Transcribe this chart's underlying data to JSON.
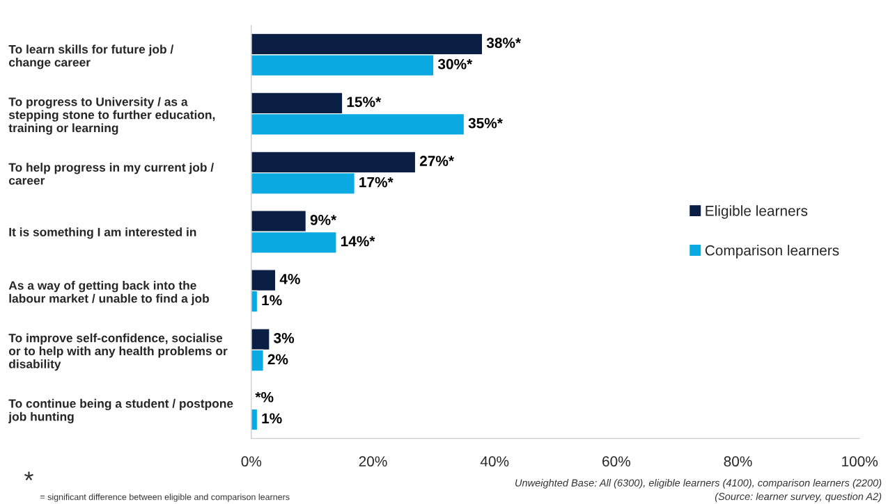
{
  "chart_data": {
    "type": "bar",
    "orientation": "horizontal",
    "categories": [
      "To learn skills for future job / change career",
      "To progress to University / as a stepping stone to further education, training or learning",
      "To help progress in my current job / career",
      "It is something I am interested in",
      "As a way of getting back into the labour market / unable to find a job",
      "To improve self-confidence, socialise or to help with any health problems or disability",
      "To continue being a student / postpone job hunting"
    ],
    "series": [
      {
        "name": "Eligible learners",
        "color": "#0b1f45",
        "values": [
          38,
          15,
          27,
          9,
          4,
          3,
          null
        ],
        "value_labels": [
          "38%*",
          "15%*",
          "27%*",
          "9%*",
          "4%",
          "3%",
          "*%"
        ]
      },
      {
        "name": "Comparison learners",
        "color": "#0aa9e1",
        "values": [
          30,
          35,
          17,
          14,
          1,
          2,
          1
        ],
        "value_labels": [
          "30%*",
          "35%*",
          "17%*",
          "14%*",
          "1%",
          "2%",
          "1%"
        ]
      }
    ],
    "xlim": [
      0,
      100
    ],
    "xticks": [
      {
        "value": 0,
        "label": "0%"
      },
      {
        "value": 20,
        "label": "20%"
      },
      {
        "value": 40,
        "label": "40%"
      },
      {
        "value": 60,
        "label": "60%"
      },
      {
        "value": 80,
        "label": "80%"
      },
      {
        "value": 100,
        "label": "100%"
      }
    ],
    "legend": "right",
    "grid": false,
    "annotations": [
      "*",
      "= significant difference between eligible and comparison learners",
      "Unweighted Base: All (6300), eligible learners (4100), comparison learners (2200)",
      "(Source: learner survey, question A2)"
    ]
  }
}
